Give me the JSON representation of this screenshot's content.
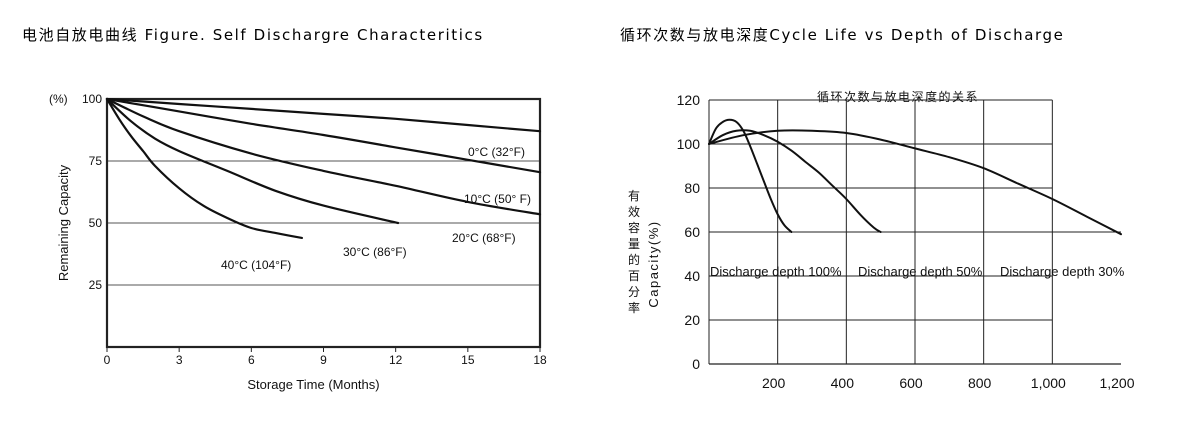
{
  "headings": {
    "left": "电池自放电曲线 Figure. Self Dischargre Characteritics",
    "right": "循环次数与放电深度Cycle Life vs Depth of Discharge"
  },
  "chart_data": [
    {
      "type": "line",
      "title": "",
      "xlabel": "Storage Time (Months)",
      "ylabel": "Remaining Capacity",
      "yunit": "(%)",
      "xlim": [
        0,
        18
      ],
      "ylim": [
        0,
        100
      ],
      "xticks": [
        0,
        3,
        6,
        9,
        12,
        15,
        18
      ],
      "yticks": [
        100,
        75,
        50,
        25
      ],
      "grid": true,
      "series": [
        {
          "name": "0°C (32°F)",
          "x": [
            0,
            3,
            6,
            9,
            12,
            15,
            18
          ],
          "y": [
            100,
            98,
            96,
            94,
            92,
            89.5,
            87
          ]
        },
        {
          "name": "10°C (50° F)",
          "x": [
            0,
            3,
            6,
            9,
            12,
            15,
            18
          ],
          "y": [
            100,
            95,
            90,
            85.5,
            80.5,
            75.5,
            70.5
          ]
        },
        {
          "name": "20°C (68°F)",
          "x": [
            0,
            1.5,
            3,
            6,
            9,
            12,
            15,
            18
          ],
          "y": [
            100,
            93,
            87,
            78,
            71,
            65,
            58.5,
            53.5
          ]
        },
        {
          "name": "30°C (86°F)",
          "x": [
            0,
            1,
            2,
            3,
            5,
            7,
            9,
            12.1
          ],
          "y": [
            100,
            91,
            84,
            79,
            71,
            63,
            57,
            50
          ]
        },
        {
          "name": "40°C (104°F)",
          "x": [
            0,
            0.5,
            1,
            1.5,
            2,
            3,
            4,
            5,
            6,
            7,
            8.1
          ],
          "y": [
            100,
            92,
            85,
            79,
            73,
            64,
            57,
            52,
            48,
            46,
            44
          ]
        }
      ]
    },
    {
      "type": "line",
      "title": "循环次数与放电深度的关系",
      "xlabel": "",
      "ylabel": "有效容量的百分率 Capacity(%)",
      "xlim": [
        0,
        1200
      ],
      "ylim": [
        0,
        120
      ],
      "xticks": [
        200,
        400,
        600,
        800,
        1000,
        1200
      ],
      "xticklabels": [
        "200",
        "400",
        "600",
        "800",
        "1,000",
        "1,200"
      ],
      "yticks": [
        120,
        100,
        80,
        60,
        40,
        20,
        0
      ],
      "grid": true,
      "series": [
        {
          "name": "Discharge depth 100%",
          "x": [
            0,
            20,
            40,
            60,
            80,
            100,
            120,
            140,
            160,
            180,
            200,
            220,
            240
          ],
          "y": [
            100,
            107,
            110,
            111,
            110,
            106,
            99,
            91,
            83,
            75,
            68,
            63,
            60
          ]
        },
        {
          "name": "Discharge depth 50%",
          "x": [
            0,
            40,
            80,
            120,
            160,
            200,
            240,
            280,
            320,
            360,
            400,
            440,
            480,
            500
          ],
          "y": [
            100,
            104,
            106,
            106,
            104,
            101,
            97,
            92,
            87,
            81,
            75,
            68,
            62,
            60
          ]
        },
        {
          "name": "Discharge depth 30%",
          "x": [
            0,
            100,
            200,
            300,
            400,
            500,
            600,
            700,
            800,
            900,
            1000,
            1100,
            1200
          ],
          "y": [
            100,
            104,
            106,
            106,
            105,
            102,
            98,
            94,
            89,
            82,
            75,
            67,
            59
          ]
        }
      ]
    }
  ]
}
